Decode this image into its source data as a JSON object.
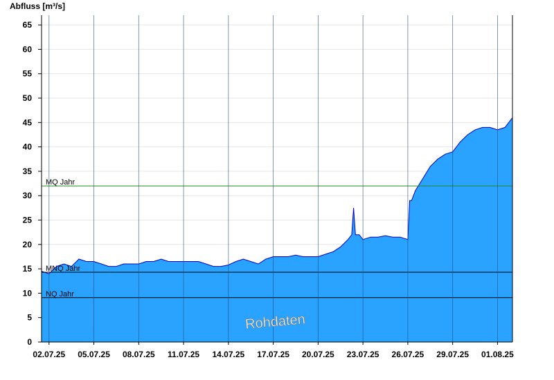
{
  "chart_data": {
    "type": "area",
    "ylabel": "Abfluss [m³/s]",
    "ylim": [
      0,
      67
    ],
    "yticks": [
      0,
      5,
      10,
      15,
      20,
      25,
      30,
      35,
      40,
      45,
      50,
      55,
      60,
      65
    ],
    "xlim": [
      "2025-07-01T12:00",
      "2025-08-02T00:00"
    ],
    "xticks": [
      "02.07.25",
      "05.07.25",
      "08.07.25",
      "11.07.25",
      "14.07.25",
      "17.07.25",
      "20.07.25",
      "23.07.25",
      "26.07.25",
      "29.07.25",
      "01.08.25"
    ],
    "grid": true,
    "fill_color": "#29a3ff",
    "line_color": "#0000cc",
    "series": [
      {
        "x": [
          "2025-07-01T12:00",
          "2025-07-02T00:00",
          "2025-07-02T12:00",
          "2025-07-03T00:00",
          "2025-07-03T12:00",
          "2025-07-04T00:00",
          "2025-07-04T12:00",
          "2025-07-05T00:00",
          "2025-07-05T12:00",
          "2025-07-06T00:00",
          "2025-07-06T12:00",
          "2025-07-07T00:00",
          "2025-07-07T12:00",
          "2025-07-08T00:00",
          "2025-07-08T12:00",
          "2025-07-09T00:00",
          "2025-07-09T12:00",
          "2025-07-10T00:00",
          "2025-07-10T12:00",
          "2025-07-11T00:00",
          "2025-07-11T12:00",
          "2025-07-12T00:00",
          "2025-07-12T12:00",
          "2025-07-13T00:00",
          "2025-07-13T12:00",
          "2025-07-14T00:00",
          "2025-07-14T12:00",
          "2025-07-15T00:00",
          "2025-07-15T12:00",
          "2025-07-16T00:00",
          "2025-07-16T12:00",
          "2025-07-17T00:00",
          "2025-07-17T12:00",
          "2025-07-18T00:00",
          "2025-07-18T12:00",
          "2025-07-19T00:00",
          "2025-07-19T12:00",
          "2025-07-20T00:00",
          "2025-07-20T12:00",
          "2025-07-21T00:00",
          "2025-07-21T12:00",
          "2025-07-22T00:00",
          "2025-07-22T06:00",
          "2025-07-22T09:00",
          "2025-07-22T12:00",
          "2025-07-22T18:00",
          "2025-07-23T00:00",
          "2025-07-23T12:00",
          "2025-07-24T00:00",
          "2025-07-24T12:00",
          "2025-07-25T00:00",
          "2025-07-25T12:00",
          "2025-07-26T00:00",
          "2025-07-26T03:00",
          "2025-07-26T06:00",
          "2025-07-26T12:00",
          "2025-07-27T00:00",
          "2025-07-27T12:00",
          "2025-07-28T00:00",
          "2025-07-28T12:00",
          "2025-07-29T00:00",
          "2025-07-29T12:00",
          "2025-07-30T00:00",
          "2025-07-30T12:00",
          "2025-07-31T00:00",
          "2025-07-31T12:00",
          "2025-08-01T00:00",
          "2025-08-01T12:00",
          "2025-08-02T00:00"
        ],
        "y": [
          14.5,
          14.0,
          15.5,
          16.0,
          15.5,
          17.0,
          16.5,
          16.5,
          16.0,
          15.5,
          15.5,
          16.0,
          16.0,
          16.0,
          16.5,
          16.5,
          17.0,
          16.5,
          16.5,
          16.5,
          16.5,
          16.5,
          16.0,
          15.5,
          15.5,
          15.8,
          16.5,
          17.0,
          16.5,
          16.0,
          17.0,
          17.5,
          17.5,
          17.5,
          17.8,
          17.5,
          17.5,
          17.5,
          18.0,
          18.5,
          19.5,
          21.0,
          22.0,
          27.5,
          22.0,
          22.0,
          21.0,
          21.5,
          21.5,
          21.8,
          21.5,
          21.5,
          21.0,
          29.0,
          29.0,
          31.0,
          33.5,
          36.0,
          37.5,
          38.5,
          39.0,
          41.0,
          42.5,
          43.5,
          44.0,
          44.0,
          43.5,
          44.0,
          46.0
        ]
      }
    ],
    "reference_lines": [
      {
        "label": "MQ Jahr",
        "value": 32.0,
        "color": "#228b22"
      },
      {
        "label": "MNQ Jahr",
        "value": 14.3,
        "color": "#000000"
      },
      {
        "label": "NQ Jahr",
        "value": 9.1,
        "color": "#000000"
      }
    ],
    "annotation": "Rohdaten"
  }
}
